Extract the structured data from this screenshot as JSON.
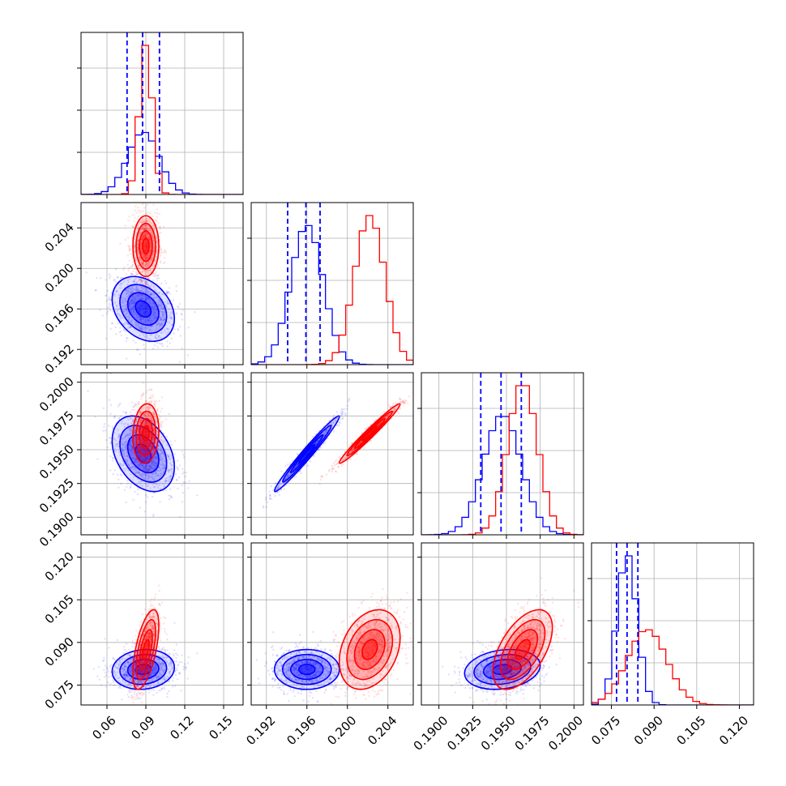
{
  "chart_data": {
    "type": "corner",
    "title": "",
    "params": [
      {
        "ticks": [
          0.06,
          0.09,
          0.12,
          0.15
        ],
        "tick_labels": [
          "0.06",
          "0.09",
          "0.12",
          "0.15"
        ],
        "range": [
          0.04,
          0.165
        ]
      },
      {
        "ticks": [
          0.192,
          0.196,
          0.2,
          0.204
        ],
        "tick_labels": [
          "0.192",
          "0.196",
          "0.200",
          "0.204"
        ],
        "range": [
          0.1905,
          0.2065
        ]
      },
      {
        "ticks": [
          0.19,
          0.1925,
          0.195,
          0.1975,
          0.2
        ],
        "tick_labels": [
          "0.1900",
          "0.1925",
          "0.1950",
          "0.1975",
          "0.2000"
        ],
        "range": [
          0.1887,
          0.2007
        ]
      },
      {
        "ticks": [
          0.075,
          0.09,
          0.105,
          0.12
        ],
        "tick_labels": [
          "0.075",
          "0.090",
          "0.105",
          "0.120"
        ],
        "range": [
          0.068,
          0.125
        ]
      }
    ],
    "series": [
      {
        "color": "#0000ff",
        "means": [
          0.088,
          0.196,
          0.1947,
          0.0805
        ],
        "sds": [
          0.012,
          0.0016,
          0.0014,
          0.0035
        ],
        "corr": [
          [
            1,
            -0.3,
            -0.35,
            0.1
          ],
          [
            -0.3,
            1,
            0.98,
            0.0
          ],
          [
            -0.35,
            0.98,
            1,
            0.2
          ],
          [
            0.1,
            0.0,
            0.2,
            1
          ]
        ]
      },
      {
        "color": "#ff0000",
        "means": [
          0.09,
          0.2022,
          0.1962,
          0.0875
        ],
        "sds": [
          0.005,
          0.0015,
          0.0011,
          0.007
        ],
        "corr": [
          [
            1,
            0,
            0.1,
            0.6
          ],
          [
            0,
            1,
            0.98,
            0.3
          ],
          [
            0.1,
            0.98,
            1,
            0.55
          ],
          [
            0.6,
            0.3,
            0.55,
            1
          ]
        ]
      }
    ],
    "quantile_lines": {
      "color": "#0000ff",
      "style": "dashed",
      "values": [
        [
          0.0755,
          0.0875,
          0.1005
        ],
        [
          0.1941,
          0.1959,
          0.1973
        ],
        [
          0.1931,
          0.1946,
          0.1961
        ],
        [
          0.0768,
          0.0805,
          0.0843
        ]
      ]
    },
    "contour_levels": [
      0.5,
      1.0,
      1.5,
      2.0
    ],
    "grid": true,
    "legend": "none"
  }
}
